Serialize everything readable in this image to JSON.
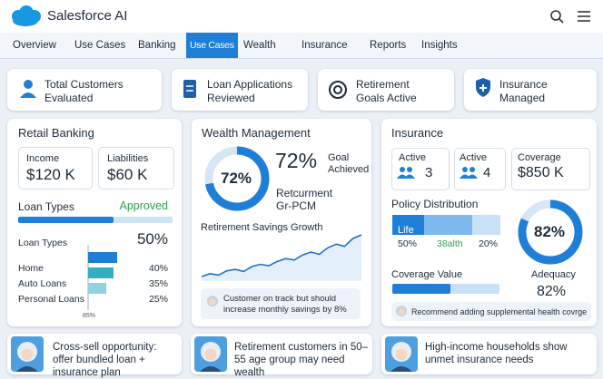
{
  "header": {
    "brand": "Salesforce AI"
  },
  "nav": [
    "Overview",
    "Use Cases",
    "Banking",
    "Use Cases",
    "Wealth",
    "Insurance",
    "Reports",
    "Insights"
  ],
  "kpis": [
    "Total Customers Evaluated",
    "Loan Applications Reviewed",
    "Retirement Goals Active",
    "Insurance Managed"
  ],
  "retail": {
    "title": "Retail Banking",
    "income": {
      "label": "Income",
      "value": "$120 K"
    },
    "liabilities": {
      "label": "Liabilities",
      "value": "$60 K"
    },
    "approval": {
      "label": "Loan Types",
      "status": "Approved"
    },
    "loan_types": {
      "label": "Loan Types",
      "total": "50%",
      "items": [
        {
          "label": "Home",
          "value": 40,
          "value_label": "40%"
        },
        {
          "label": "Auto Loans",
          "value": 35,
          "value_label": "35%"
        },
        {
          "label": "Personal Loans",
          "value": 25,
          "value_label": "25%"
        }
      ],
      "footnote": "85%"
    }
  },
  "wealth": {
    "title": "Wealth Management",
    "donut": {
      "value": 72,
      "label": "72%"
    },
    "headline": "72%",
    "goal": "Goal Achieved",
    "subtitle": "Retcurment Gr-PCM",
    "chart_title": "Retirement Savings Growth",
    "growth": [
      10,
      14,
      12,
      18,
      20,
      17,
      24,
      27,
      25,
      31,
      35,
      33,
      40,
      44,
      41,
      50,
      55,
      52,
      63,
      68
    ],
    "note": "Customer on track but should increase monthly savings by 8%"
  },
  "insurance": {
    "title": "Insurance",
    "stats": [
      {
        "label": "Active",
        "value": "3"
      },
      {
        "label": "Active",
        "value": "4"
      },
      {
        "label": "Coverage",
        "value": "$850 K"
      }
    ],
    "policy": {
      "title": "Policy Distribution",
      "segment": "Life",
      "labels": [
        "50%",
        "38alth",
        "20%"
      ]
    },
    "donut": {
      "value": 82,
      "label": "82%"
    },
    "coverage_title": "Coverage Value",
    "adequacy": {
      "label": "Adequacy",
      "value": "82%"
    },
    "note": "Recommend adding supplemental health covrge"
  },
  "insights": [
    "Cross-sell opportunity: offer bundled loan + insurance plan",
    "Retirement customers in 50–55 age group may need wealth",
    "High-income households show unmet insurance needs"
  ]
}
